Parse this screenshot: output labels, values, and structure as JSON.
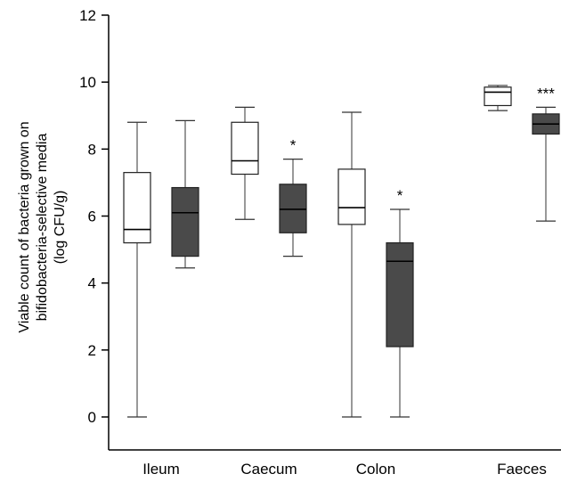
{
  "chart_data": {
    "type": "box",
    "ylabel_lines": [
      "Viable count of bacteria grown on",
      "bifidobacteria-selective media",
      "(log CFU/g)"
    ],
    "ylim": [
      0,
      12
    ],
    "yticks": [
      "0",
      "2",
      "4",
      "6",
      "8",
      "10",
      "12"
    ],
    "categories": [
      "Ileum",
      "Caecum",
      "Colon",
      "Faeces"
    ],
    "groups": [
      {
        "fill": "#ffffff"
      },
      {
        "fill": "#4a4a4a"
      }
    ],
    "boxes": [
      {
        "category": "Ileum",
        "group": 0,
        "min": 0,
        "q1": 5.2,
        "median": 5.6,
        "q3": 7.3,
        "max": 8.8,
        "sig": ""
      },
      {
        "category": "Ileum",
        "group": 1,
        "min": 4.45,
        "q1": 4.8,
        "median": 6.1,
        "q3": 6.85,
        "max": 8.85,
        "sig": ""
      },
      {
        "category": "Caecum",
        "group": 0,
        "min": 5.9,
        "q1": 7.25,
        "median": 7.65,
        "q3": 8.8,
        "max": 9.25,
        "sig": ""
      },
      {
        "category": "Caecum",
        "group": 1,
        "min": 4.8,
        "q1": 5.5,
        "median": 6.2,
        "q3": 6.95,
        "max": 7.7,
        "sig": "*"
      },
      {
        "category": "Colon",
        "group": 0,
        "min": 0,
        "q1": 5.75,
        "median": 6.25,
        "q3": 7.4,
        "max": 9.1,
        "sig": ""
      },
      {
        "category": "Colon",
        "group": 1,
        "min": 0,
        "q1": 2.1,
        "median": 4.65,
        "q3": 5.2,
        "max": 6.2,
        "sig": "*"
      },
      {
        "category": "Faeces",
        "group": 0,
        "min": 9.15,
        "q1": 9.3,
        "median": 9.7,
        "q3": 9.85,
        "max": 9.9,
        "sig": ""
      },
      {
        "category": "Faeces",
        "group": 1,
        "min": 5.85,
        "q1": 8.45,
        "median": 8.75,
        "q3": 9.05,
        "max": 9.25,
        "sig": "***"
      }
    ],
    "grid": false,
    "legend": "none"
  }
}
